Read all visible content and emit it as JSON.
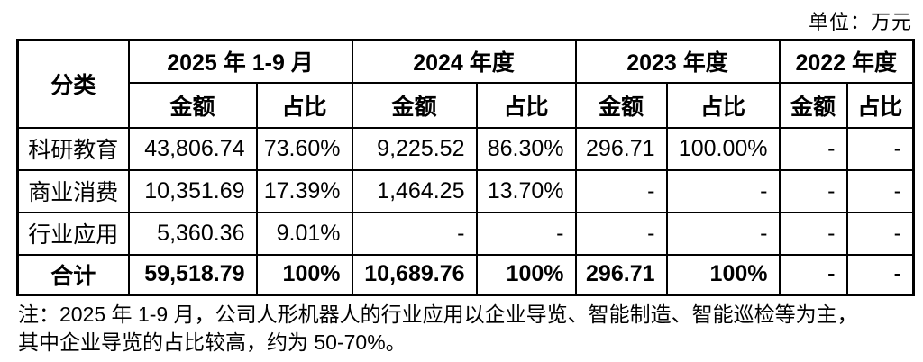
{
  "unit_label": "单位：万元",
  "colors": {
    "text": "#000000",
    "border": "#000000",
    "background": "#ffffff"
  },
  "table": {
    "header": {
      "category": "分类",
      "periods": [
        "2025 年 1-9 月",
        "2024 年度",
        "2023 年度",
        "2022 年度"
      ],
      "amount_label": "金额",
      "ratio_label": "占比"
    },
    "rows": [
      {
        "category": "科研教育",
        "values": [
          "43,806.74",
          "73.60%",
          "9,225.52",
          "86.30%",
          "296.71",
          "100.00%",
          "-",
          "-"
        ]
      },
      {
        "category": "商业消费",
        "values": [
          "10,351.69",
          "17.39%",
          "1,464.25",
          "13.70%",
          "-",
          "-",
          "-",
          "-"
        ]
      },
      {
        "category": "行业应用",
        "values": [
          "5,360.36",
          "9.01%",
          "-",
          "-",
          "-",
          "-",
          "-",
          "-"
        ]
      },
      {
        "category": "合计",
        "values": [
          "59,518.79",
          "100%",
          "10,689.76",
          "100%",
          "296.71",
          "100%",
          "-",
          "-"
        ]
      }
    ]
  },
  "note": {
    "lines": [
      "注：2025 年 1-9 月，公司人形机器人的行业应用以企业导览、智能制造、智能巡检等为主，",
      "其中企业导览的占比较高，约为 50-70%。"
    ]
  }
}
